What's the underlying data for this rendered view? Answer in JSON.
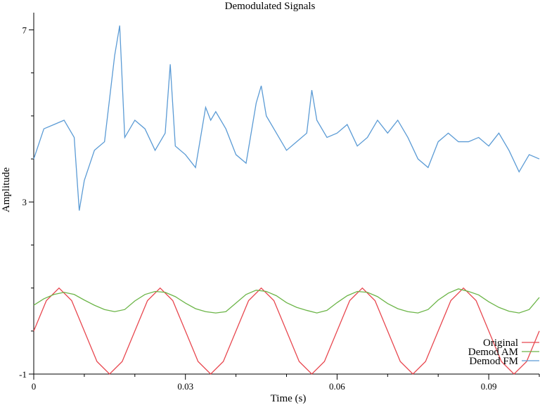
{
  "chart_data": {
    "type": "line",
    "title": "Demodulated Signals",
    "xlabel": "Time (s)",
    "ylabel": "Amplitude",
    "xlim": [
      0,
      0.1
    ],
    "ylim": [
      -1,
      7.4
    ],
    "x_ticks": [
      0,
      0.03,
      0.06,
      0.09
    ],
    "x_tick_labels": [
      "0",
      "0.03",
      "0.06",
      "0.09"
    ],
    "x_minor_ticks": [
      0.01,
      0.02,
      0.04,
      0.05,
      0.07,
      0.08,
      0.1
    ],
    "y_ticks": [
      -1,
      3,
      7
    ],
    "y_tick_labels": [
      "-1",
      "3",
      "7"
    ],
    "y_minor_ticks": [
      0,
      1,
      2,
      4,
      5,
      6
    ],
    "grid": false,
    "legend_position": "bottom-right",
    "series": [
      {
        "name": "Original",
        "color": "#e8474f",
        "description_formula": "sin(2*pi*50*t)",
        "x": [
          0,
          0.0025,
          0.005,
          0.0075,
          0.01,
          0.0125,
          0.015,
          0.0175,
          0.02,
          0.0225,
          0.025,
          0.0275,
          0.03,
          0.0325,
          0.035,
          0.0375,
          0.04,
          0.0425,
          0.045,
          0.0475,
          0.05,
          0.0525,
          0.055,
          0.0575,
          0.06,
          0.0625,
          0.065,
          0.0675,
          0.07,
          0.0725,
          0.075,
          0.0775,
          0.08,
          0.0825,
          0.085,
          0.0875,
          0.09,
          0.0925,
          0.095,
          0.0975,
          0.1
        ],
        "y": [
          0,
          0.707,
          1,
          0.707,
          0,
          -0.707,
          -1,
          -0.707,
          0,
          0.707,
          1,
          0.707,
          0,
          -0.707,
          -1,
          -0.707,
          0,
          0.707,
          1,
          0.707,
          0,
          -0.707,
          -1,
          -0.707,
          0,
          0.707,
          1,
          0.707,
          0,
          -0.707,
          -1,
          -0.707,
          0,
          0.707,
          1,
          0.707,
          0,
          -0.707,
          -1,
          -0.707,
          0
        ]
      },
      {
        "name": "Demod AM",
        "color": "#6cb548",
        "x": [
          0,
          0.002,
          0.004,
          0.006,
          0.008,
          0.01,
          0.012,
          0.014,
          0.016,
          0.018,
          0.02,
          0.022,
          0.024,
          0.026,
          0.028,
          0.03,
          0.032,
          0.034,
          0.036,
          0.038,
          0.04,
          0.042,
          0.044,
          0.046,
          0.048,
          0.05,
          0.052,
          0.054,
          0.056,
          0.058,
          0.06,
          0.062,
          0.064,
          0.066,
          0.068,
          0.07,
          0.072,
          0.074,
          0.076,
          0.078,
          0.08,
          0.082,
          0.084,
          0.086,
          0.088,
          0.09,
          0.092,
          0.094,
          0.096,
          0.098,
          0.1
        ],
        "y": [
          0.6,
          0.75,
          0.85,
          0.9,
          0.85,
          0.72,
          0.6,
          0.5,
          0.45,
          0.5,
          0.7,
          0.85,
          0.92,
          0.9,
          0.8,
          0.65,
          0.52,
          0.45,
          0.42,
          0.45,
          0.65,
          0.85,
          0.95,
          0.92,
          0.82,
          0.66,
          0.55,
          0.48,
          0.42,
          0.48,
          0.66,
          0.82,
          0.92,
          0.9,
          0.8,
          0.64,
          0.52,
          0.45,
          0.42,
          0.5,
          0.72,
          0.88,
          0.98,
          0.92,
          0.84,
          0.68,
          0.55,
          0.46,
          0.42,
          0.5,
          0.78
        ]
      },
      {
        "name": "Demod FM",
        "color": "#5b9bd5",
        "x": [
          0,
          0.002,
          0.004,
          0.006,
          0.008,
          0.009,
          0.01,
          0.012,
          0.014,
          0.016,
          0.017,
          0.018,
          0.02,
          0.022,
          0.024,
          0.026,
          0.027,
          0.028,
          0.03,
          0.032,
          0.034,
          0.035,
          0.036,
          0.038,
          0.04,
          0.042,
          0.044,
          0.045,
          0.046,
          0.048,
          0.05,
          0.052,
          0.054,
          0.055,
          0.056,
          0.058,
          0.06,
          0.062,
          0.064,
          0.066,
          0.068,
          0.07,
          0.072,
          0.074,
          0.076,
          0.078,
          0.08,
          0.082,
          0.084,
          0.086,
          0.088,
          0.09,
          0.092,
          0.094,
          0.096,
          0.098,
          0.1
        ],
        "y": [
          4.0,
          4.7,
          4.8,
          4.9,
          4.5,
          2.8,
          3.5,
          4.2,
          4.4,
          6.4,
          7.1,
          4.5,
          4.9,
          4.7,
          4.2,
          4.6,
          6.2,
          4.3,
          4.1,
          3.8,
          5.2,
          4.9,
          5.1,
          4.7,
          4.1,
          3.9,
          5.3,
          5.7,
          5.0,
          4.6,
          4.2,
          4.4,
          4.6,
          5.6,
          4.9,
          4.5,
          4.6,
          4.8,
          4.3,
          4.5,
          4.9,
          4.6,
          4.9,
          4.5,
          4.0,
          3.8,
          4.4,
          4.6,
          4.4,
          4.4,
          4.5,
          4.3,
          4.6,
          4.2,
          3.7,
          4.1,
          4.0
        ]
      }
    ]
  }
}
